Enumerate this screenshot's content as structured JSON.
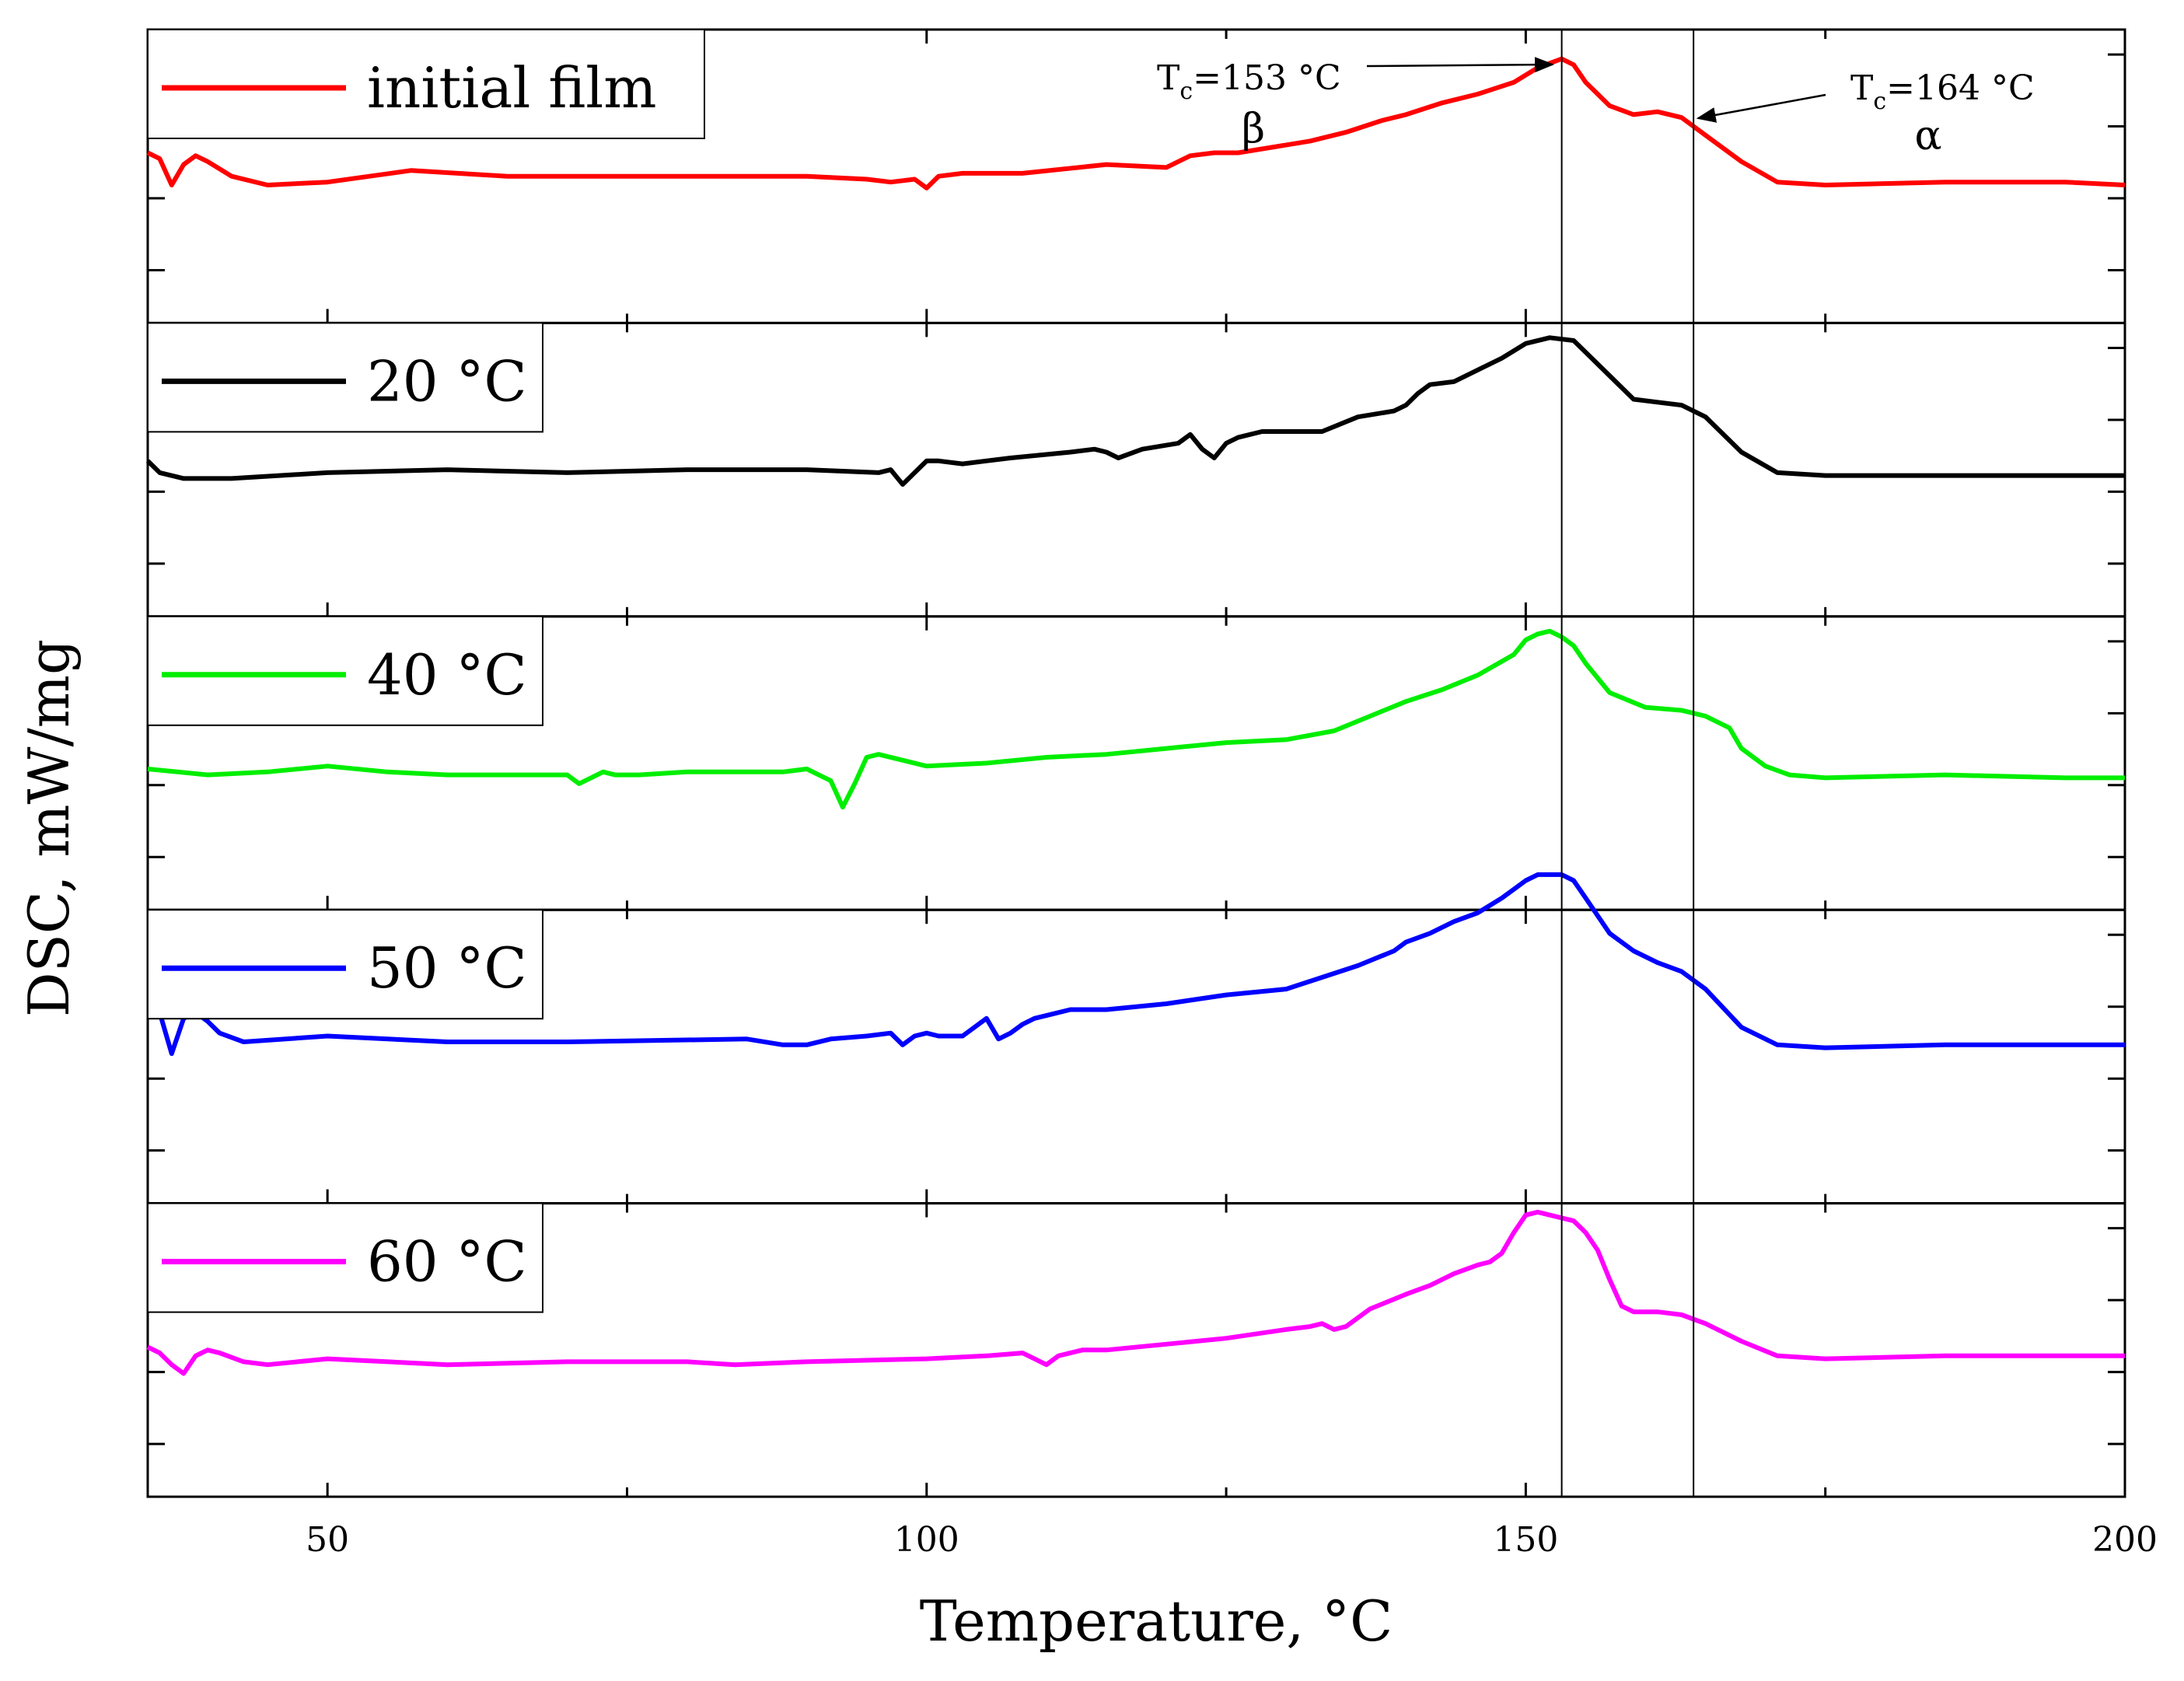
{
  "chart_data": {
    "type": "line",
    "layout": "stacked-panels",
    "xlabel": "Temperature, °C",
    "ylabel": "DSC, mW/mg",
    "xlim": [
      35,
      200
    ],
    "xticks": [
      50,
      100,
      150,
      200
    ],
    "xtick_labels": [
      "50",
      "100",
      "150",
      "200"
    ],
    "panel_ylim": [
      0,
      10
    ],
    "vlines": [
      153,
      164
    ],
    "annotations": [
      {
        "text": "Tc=153 °C",
        "sub_main": "T",
        "sub": "c",
        "rest": "=153 °C",
        "phase": "β",
        "x": 153
      },
      {
        "text": "Tc=164 °C",
        "sub_main": "T",
        "sub": "c",
        "rest": "=164 °C",
        "phase": "α",
        "x": 164
      }
    ],
    "series": [
      {
        "name": "initial film",
        "color": "#ff0000",
        "x": [
          35,
          36,
          37,
          38,
          39,
          40,
          42,
          45,
          50,
          57,
          65,
          80,
          90,
          95,
          97,
          99,
          100,
          101,
          103,
          108,
          115,
          120,
          122,
          124,
          126,
          129,
          132,
          135,
          138,
          140,
          143,
          146,
          149,
          151,
          153,
          154,
          155,
          157,
          159,
          161,
          163,
          165,
          168,
          171,
          175,
          185,
          195,
          200
        ],
        "y": [
          5.8,
          5.6,
          4.7,
          5.4,
          5.7,
          5.5,
          5.0,
          4.7,
          4.8,
          5.2,
          5.0,
          5.0,
          5.0,
          4.9,
          4.8,
          4.9,
          4.6,
          5.0,
          5.1,
          5.1,
          5.4,
          5.3,
          5.7,
          5.8,
          5.8,
          6.0,
          6.2,
          6.5,
          6.9,
          7.1,
          7.5,
          7.8,
          8.2,
          8.7,
          9.0,
          8.8,
          8.2,
          7.4,
          7.1,
          7.2,
          7.0,
          6.4,
          5.5,
          4.8,
          4.7,
          4.8,
          4.8,
          4.7
        ]
      },
      {
        "name": "20 °C",
        "color": "#000000",
        "x": [
          35,
          36,
          38,
          42,
          50,
          60,
          70,
          80,
          90,
          96,
          97,
          98,
          99,
          100,
          101,
          103,
          107,
          112,
          114,
          115,
          116,
          118,
          121,
          122,
          123,
          124,
          125,
          126,
          128,
          131,
          133,
          136,
          139,
          140,
          141,
          142,
          144,
          146,
          148,
          150,
          152,
          154,
          155,
          157,
          159,
          161,
          163,
          165,
          168,
          171,
          175,
          185,
          195,
          200
        ],
        "y": [
          5.3,
          4.9,
          4.7,
          4.7,
          4.9,
          5.0,
          4.9,
          5.0,
          5.0,
          4.9,
          5.0,
          4.5,
          4.9,
          5.3,
          5.3,
          5.2,
          5.4,
          5.6,
          5.7,
          5.6,
          5.4,
          5.7,
          5.9,
          6.2,
          5.7,
          5.4,
          5.9,
          6.1,
          6.3,
          6.3,
          6.3,
          6.8,
          7.0,
          7.2,
          7.6,
          7.9,
          8.0,
          8.4,
          8.8,
          9.3,
          9.5,
          9.4,
          9.0,
          8.2,
          7.4,
          7.3,
          7.2,
          6.8,
          5.6,
          4.9,
          4.8,
          4.8,
          4.8,
          4.8
        ]
      },
      {
        "name": "40 °C",
        "color": "#00ee00",
        "x": [
          35,
          40,
          45,
          50,
          55,
          60,
          65,
          70,
          71,
          72,
          73,
          74,
          76,
          80,
          88,
          90,
          91,
          92,
          93,
          94,
          95,
          96,
          100,
          105,
          110,
          115,
          120,
          125,
          130,
          134,
          137,
          140,
          143,
          146,
          149,
          150,
          151,
          152,
          153,
          154,
          155,
          157,
          160,
          163,
          165,
          167,
          168,
          170,
          172,
          175,
          185,
          195,
          200
        ],
        "y": [
          4.8,
          4.6,
          4.7,
          4.9,
          4.7,
          4.6,
          4.6,
          4.6,
          4.3,
          4.5,
          4.7,
          4.6,
          4.6,
          4.7,
          4.7,
          4.8,
          4.6,
          4.4,
          3.5,
          4.3,
          5.2,
          5.3,
          4.9,
          5.0,
          5.2,
          5.3,
          5.5,
          5.7,
          5.8,
          6.1,
          6.6,
          7.1,
          7.5,
          8.0,
          8.7,
          9.2,
          9.4,
          9.5,
          9.3,
          9.0,
          8.4,
          7.4,
          6.9,
          6.8,
          6.6,
          6.2,
          5.5,
          4.9,
          4.6,
          4.5,
          4.6,
          4.5,
          4.5
        ]
      },
      {
        "name": "50 °C",
        "color": "#0000ff",
        "x": [
          35,
          36,
          37,
          38,
          39,
          40,
          41,
          43,
          50,
          60,
          70,
          85,
          88,
          90,
          92,
          95,
          97,
          98,
          99,
          100,
          101,
          103,
          105,
          106,
          107,
          108,
          109,
          110,
          112,
          115,
          120,
          125,
          130,
          133,
          136,
          139,
          140,
          142,
          144,
          146,
          148,
          150,
          151,
          153,
          154,
          155,
          157,
          159,
          161,
          163,
          165,
          168,
          171,
          175,
          185,
          195,
          200
        ],
        "y": [
          6.6,
          6.5,
          5.1,
          6.3,
          6.5,
          6.2,
          5.8,
          5.5,
          5.7,
          5.5,
          5.5,
          5.6,
          5.4,
          5.4,
          5.6,
          5.7,
          5.8,
          5.4,
          5.7,
          5.8,
          5.7,
          5.7,
          6.3,
          5.6,
          5.8,
          6.1,
          6.3,
          6.4,
          6.6,
          6.6,
          6.8,
          7.1,
          7.3,
          7.7,
          8.1,
          8.6,
          8.9,
          9.2,
          9.6,
          9.9,
          10.4,
          11.0,
          11.2,
          11.2,
          11.0,
          10.4,
          9.2,
          8.6,
          8.2,
          7.9,
          7.3,
          6.0,
          5.4,
          5.3,
          5.4,
          5.4,
          5.4
        ]
      },
      {
        "name": "60 °C",
        "color": "#ff00ff",
        "x": [
          35,
          36,
          37,
          38,
          39,
          40,
          41,
          43,
          45,
          50,
          60,
          70,
          80,
          84,
          90,
          100,
          105,
          108,
          109,
          110,
          111,
          113,
          115,
          120,
          125,
          130,
          132,
          133,
          134,
          135,
          137,
          140,
          142,
          144,
          146,
          147,
          148,
          149,
          150,
          151,
          152,
          154,
          155,
          156,
          157,
          158,
          159,
          161,
          163,
          165,
          168,
          171,
          175,
          185,
          195,
          200
        ],
        "y": [
          5.1,
          4.9,
          4.5,
          4.2,
          4.8,
          5.0,
          4.9,
          4.6,
          4.5,
          4.7,
          4.5,
          4.6,
          4.6,
          4.5,
          4.6,
          4.7,
          4.8,
          4.9,
          4.7,
          4.5,
          4.8,
          5.0,
          5.0,
          5.2,
          5.4,
          5.7,
          5.8,
          5.9,
          5.7,
          5.8,
          6.4,
          6.9,
          7.2,
          7.6,
          7.9,
          8.0,
          8.3,
          9.0,
          9.6,
          9.7,
          9.6,
          9.4,
          9.0,
          8.4,
          7.4,
          6.5,
          6.3,
          6.3,
          6.2,
          5.9,
          5.3,
          4.8,
          4.7,
          4.8,
          4.8,
          4.8
        ]
      }
    ]
  }
}
